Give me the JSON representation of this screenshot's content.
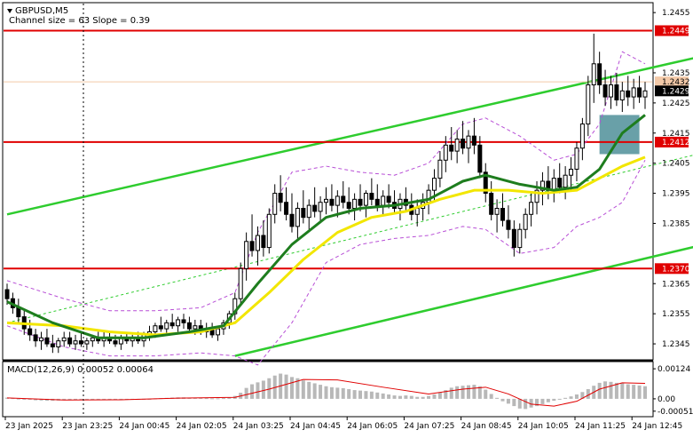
{
  "header": {
    "symbol": "GBPUSD,M5",
    "channel_info": "Channel size = 63 Slope = 0.39"
  },
  "chart_data": [
    {
      "type": "candlestick",
      "title": "GBPUSD,M5",
      "ylim": [
        1.234,
        1.2458
      ],
      "y_ticks": [
        "1.2455",
        "1.2435",
        "1.2425",
        "1.2415",
        "1.2405",
        "1.2395",
        "1.2385",
        "1.2365",
        "1.2355",
        "1.2345"
      ],
      "x_ticks": [
        "23 Jan 2025",
        "23 Jan 23:25",
        "24 Jan 00:45",
        "24 Jan 02:05",
        "24 Jan 03:25",
        "24 Jan 04:45",
        "24 Jan 06:05",
        "24 Jan 07:25",
        "24 Jan 08:45",
        "24 Jan 10:05",
        "24 Jan 11:25",
        "24 Jan 12:45"
      ],
      "price_levels": [
        {
          "label": "1.2449",
          "value": 1.2449,
          "color": "#e00000"
        },
        {
          "label": "1.2412",
          "value": 1.2412,
          "color": "#e00000"
        },
        {
          "label": "1.2370",
          "value": 1.237,
          "color": "#e00000"
        }
      ],
      "current_price": {
        "label": "1.2429",
        "value": 1.2429
      },
      "bid_level": {
        "label": "1.2432",
        "value": 1.2432
      },
      "channel": {
        "color": "#2ecc2e",
        "upper": [
          [
            0,
            1.2388
          ],
          [
            158,
            1.2456
          ]
        ],
        "lower": [
          [
            40,
            1.2341
          ],
          [
            158,
            1.2394
          ]
        ],
        "middle": [
          [
            0,
            1.2352
          ],
          [
            158,
            1.2425
          ]
        ]
      },
      "highlight_zone": {
        "x_from": 104,
        "x_to": 111,
        "y_from": 1.2408,
        "y_to": 1.2421,
        "color": "#4f8f99"
      },
      "ma_fast_color": "#1e7d1e",
      "ma_slow_color": "#f2e600",
      "bands_color": "#b84fd6",
      "candles": [
        [
          1.2363,
          1.2365,
          1.2358,
          1.236
        ],
        [
          1.236,
          1.2362,
          1.2355,
          1.2357
        ],
        [
          1.2357,
          1.236,
          1.2352,
          1.2354
        ],
        [
          1.2354,
          1.2356,
          1.2348,
          1.235
        ],
        [
          1.235,
          1.2353,
          1.2346,
          1.2348
        ],
        [
          1.2348,
          1.235,
          1.2344,
          1.2346
        ],
        [
          1.2346,
          1.2349,
          1.2343,
          1.2347
        ],
        [
          1.2347,
          1.235,
          1.2344,
          1.2345
        ],
        [
          1.2345,
          1.2348,
          1.2342,
          1.2344
        ],
        [
          1.2344,
          1.2347,
          1.2342,
          1.2346
        ],
        [
          1.2346,
          1.2349,
          1.2344,
          1.2347
        ],
        [
          1.2347,
          1.2349,
          1.2344,
          1.2345
        ],
        [
          1.2345,
          1.2348,
          1.2343,
          1.2346
        ],
        [
          1.2346,
          1.2349,
          1.2344,
          1.2345
        ],
        [
          1.2345,
          1.2347,
          1.2343,
          1.2346
        ],
        [
          1.2346,
          1.2348,
          1.2344,
          1.2347
        ],
        [
          1.2347,
          1.2349,
          1.2345,
          1.2346
        ],
        [
          1.2346,
          1.2349,
          1.2344,
          1.2347
        ],
        [
          1.2347,
          1.2349,
          1.2345,
          1.2346
        ],
        [
          1.2346,
          1.2348,
          1.2344,
          1.2345
        ],
        [
          1.2345,
          1.2348,
          1.2343,
          1.2347
        ],
        [
          1.2347,
          1.2349,
          1.2345,
          1.2346
        ],
        [
          1.2346,
          1.2348,
          1.2344,
          1.2347
        ],
        [
          1.2347,
          1.2349,
          1.2345,
          1.2346
        ],
        [
          1.2346,
          1.2349,
          1.2344,
          1.2348
        ],
        [
          1.2348,
          1.2351,
          1.2346,
          1.2349
        ],
        [
          1.2349,
          1.2352,
          1.2347,
          1.2351
        ],
        [
          1.2351,
          1.2354,
          1.2349,
          1.235
        ],
        [
          1.235,
          1.2353,
          1.2348,
          1.2352
        ],
        [
          1.2352,
          1.2355,
          1.235,
          1.2351
        ],
        [
          1.2351,
          1.2354,
          1.2349,
          1.2353
        ],
        [
          1.2353,
          1.2355,
          1.235,
          1.2352
        ],
        [
          1.2352,
          1.2354,
          1.2349,
          1.235
        ],
        [
          1.235,
          1.2353,
          1.2348,
          1.2351
        ],
        [
          1.2351,
          1.2353,
          1.2348,
          1.2349
        ],
        [
          1.2349,
          1.2352,
          1.2347,
          1.235
        ],
        [
          1.235,
          1.2352,
          1.2347,
          1.2348
        ],
        [
          1.2348,
          1.2351,
          1.2346,
          1.235
        ],
        [
          1.235,
          1.2353,
          1.2348,
          1.2352
        ],
        [
          1.2352,
          1.2356,
          1.235,
          1.2355
        ],
        [
          1.2355,
          1.2362,
          1.2353,
          1.236
        ],
        [
          1.236,
          1.2372,
          1.2358,
          1.237
        ],
        [
          1.237,
          1.2382,
          1.2366,
          1.2379
        ],
        [
          1.2379,
          1.2388,
          1.2374,
          1.2376
        ],
        [
          1.2376,
          1.2384,
          1.2371,
          1.2381
        ],
        [
          1.2381,
          1.2386,
          1.2374,
          1.2377
        ],
        [
          1.2377,
          1.239,
          1.2375,
          1.2388
        ],
        [
          1.2388,
          1.2398,
          1.2385,
          1.2395
        ],
        [
          1.2395,
          1.2401,
          1.2389,
          1.2392
        ],
        [
          1.2392,
          1.2397,
          1.2386,
          1.2388
        ],
        [
          1.2388,
          1.2395,
          1.2382,
          1.2384
        ],
        [
          1.2384,
          1.2392,
          1.238,
          1.239
        ],
        [
          1.239,
          1.2396,
          1.2385,
          1.2387
        ],
        [
          1.2387,
          1.2393,
          1.2383,
          1.2391
        ],
        [
          1.2391,
          1.2397,
          1.2387,
          1.2389
        ],
        [
          1.2389,
          1.2394,
          1.2385,
          1.2392
        ],
        [
          1.2392,
          1.2397,
          1.2388,
          1.2393
        ],
        [
          1.2393,
          1.2398,
          1.2389,
          1.2391
        ],
        [
          1.2391,
          1.2396,
          1.2387,
          1.2394
        ],
        [
          1.2394,
          1.2399,
          1.239,
          1.2392
        ],
        [
          1.2392,
          1.2397,
          1.2388,
          1.239
        ],
        [
          1.239,
          1.2395,
          1.2386,
          1.2393
        ],
        [
          1.2393,
          1.2398,
          1.2389,
          1.2391
        ],
        [
          1.2391,
          1.2396,
          1.2387,
          1.2395
        ],
        [
          1.2395,
          1.24,
          1.2391,
          1.2393
        ],
        [
          1.2393,
          1.2398,
          1.2389,
          1.2391
        ],
        [
          1.2391,
          1.2396,
          1.2388,
          1.2394
        ],
        [
          1.2394,
          1.2398,
          1.239,
          1.2392
        ],
        [
          1.2392,
          1.2396,
          1.2388,
          1.239
        ],
        [
          1.239,
          1.2395,
          1.2386,
          1.2393
        ],
        [
          1.2393,
          1.2397,
          1.2389,
          1.2391
        ],
        [
          1.2391,
          1.2395,
          1.2386,
          1.2388
        ],
        [
          1.2388,
          1.2393,
          1.2384,
          1.239
        ],
        [
          1.239,
          1.2395,
          1.2386,
          1.2392
        ],
        [
          1.2392,
          1.2398,
          1.2388,
          1.2396
        ],
        [
          1.2396,
          1.2403,
          1.2392,
          1.24
        ],
        [
          1.24,
          1.2409,
          1.2397,
          1.2406
        ],
        [
          1.2406,
          1.2414,
          1.2402,
          1.2411
        ],
        [
          1.2411,
          1.2417,
          1.2406,
          1.2409
        ],
        [
          1.2409,
          1.2416,
          1.2405,
          1.2413
        ],
        [
          1.2413,
          1.2419,
          1.2408,
          1.241
        ],
        [
          1.241,
          1.2416,
          1.2405,
          1.2414
        ],
        [
          1.2414,
          1.242,
          1.2408,
          1.2411
        ],
        [
          1.2411,
          1.2414,
          1.24,
          1.2402
        ],
        [
          1.2402,
          1.2405,
          1.2392,
          1.2395
        ],
        [
          1.2395,
          1.2399,
          1.2386,
          1.2388
        ],
        [
          1.2388,
          1.2393,
          1.2382,
          1.239
        ],
        [
          1.239,
          1.2395,
          1.2384,
          1.2386
        ],
        [
          1.2386,
          1.2391,
          1.238,
          1.2383
        ],
        [
          1.2383,
          1.2386,
          1.2374,
          1.2377
        ],
        [
          1.2377,
          1.2385,
          1.2375,
          1.2383
        ],
        [
          1.2383,
          1.239,
          1.238,
          1.2388
        ],
        [
          1.2388,
          1.2395,
          1.2384,
          1.2392
        ],
        [
          1.2392,
          1.2399,
          1.2388,
          1.2396
        ],
        [
          1.2396,
          1.2402,
          1.2391,
          1.2399
        ],
        [
          1.2399,
          1.2404,
          1.2393,
          1.2396
        ],
        [
          1.2396,
          1.2403,
          1.2392,
          1.24
        ],
        [
          1.24,
          1.2405,
          1.2395,
          1.2397
        ],
        [
          1.2397,
          1.2404,
          1.2393,
          1.2401
        ],
        [
          1.2401,
          1.2407,
          1.2396,
          1.2403
        ],
        [
          1.2403,
          1.2412,
          1.2399,
          1.241
        ],
        [
          1.241,
          1.242,
          1.2406,
          1.2418
        ],
        [
          1.2418,
          1.2434,
          1.2414,
          1.2431
        ],
        [
          1.2431,
          1.2448,
          1.2425,
          1.2438
        ],
        [
          1.2438,
          1.2442,
          1.2428,
          1.2431
        ],
        [
          1.2431,
          1.2436,
          1.2424,
          1.2427
        ],
        [
          1.2427,
          1.2434,
          1.2423,
          1.2431
        ],
        [
          1.2431,
          1.2435,
          1.2424,
          1.2426
        ],
        [
          1.2426,
          1.2432,
          1.2422,
          1.2429
        ],
        [
          1.2429,
          1.2434,
          1.2424,
          1.2427
        ],
        [
          1.2427,
          1.2433,
          1.2423,
          1.243
        ],
        [
          1.243,
          1.2434,
          1.2425,
          1.2427
        ],
        [
          1.2427,
          1.2432,
          1.2423,
          1.2429
        ]
      ],
      "ma_fast": [
        [
          0,
          1.2359
        ],
        [
          8,
          1.2352
        ],
        [
          16,
          1.2347
        ],
        [
          24,
          1.2347
        ],
        [
          32,
          1.2349
        ],
        [
          38,
          1.2351
        ],
        [
          44,
          1.2365
        ],
        [
          50,
          1.2378
        ],
        [
          56,
          1.2387
        ],
        [
          62,
          1.239
        ],
        [
          68,
          1.2391
        ],
        [
          74,
          1.2393
        ],
        [
          80,
          1.2399
        ],
        [
          84,
          1.2401
        ],
        [
          90,
          1.2398
        ],
        [
          96,
          1.2396
        ],
        [
          100,
          1.2397
        ],
        [
          104,
          1.2403
        ],
        [
          108,
          1.2415
        ],
        [
          112,
          1.2421
        ]
      ],
      "ma_slow": [
        [
          0,
          1.2352
        ],
        [
          10,
          1.2351
        ],
        [
          18,
          1.2349
        ],
        [
          26,
          1.2348
        ],
        [
          34,
          1.2349
        ],
        [
          40,
          1.2352
        ],
        [
          46,
          1.2362
        ],
        [
          52,
          1.2373
        ],
        [
          58,
          1.2382
        ],
        [
          64,
          1.2387
        ],
        [
          70,
          1.2389
        ],
        [
          76,
          1.2393
        ],
        [
          82,
          1.2396
        ],
        [
          88,
          1.2396
        ],
        [
          94,
          1.2395
        ],
        [
          100,
          1.2396
        ],
        [
          104,
          1.24
        ],
        [
          108,
          1.2404
        ],
        [
          112,
          1.2407
        ]
      ],
      "bands_upper": [
        [
          0,
          1.2366
        ],
        [
          10,
          1.236
        ],
        [
          18,
          1.2356
        ],
        [
          26,
          1.2356
        ],
        [
          34,
          1.2357
        ],
        [
          40,
          1.2362
        ],
        [
          44,
          1.2382
        ],
        [
          50,
          1.2402
        ],
        [
          56,
          1.2404
        ],
        [
          62,
          1.2402
        ],
        [
          68,
          1.2401
        ],
        [
          74,
          1.2405
        ],
        [
          80,
          1.2418
        ],
        [
          84,
          1.242
        ],
        [
          90,
          1.2414
        ],
        [
          96,
          1.2406
        ],
        [
          100,
          1.2408
        ],
        [
          104,
          1.2418
        ],
        [
          108,
          1.2442
        ],
        [
          112,
          1.2438
        ]
      ],
      "bands_lower": [
        [
          0,
          1.2351
        ],
        [
          10,
          1.2344
        ],
        [
          18,
          1.2341
        ],
        [
          26,
          1.2341
        ],
        [
          34,
          1.2342
        ],
        [
          40,
          1.2341
        ],
        [
          44,
          1.2338
        ],
        [
          50,
          1.2352
        ],
        [
          56,
          1.2372
        ],
        [
          62,
          1.2378
        ],
        [
          68,
          1.238
        ],
        [
          74,
          1.2381
        ],
        [
          80,
          1.2384
        ],
        [
          84,
          1.2383
        ],
        [
          90,
          1.2375
        ],
        [
          96,
          1.2377
        ],
        [
          100,
          1.2384
        ],
        [
          104,
          1.2387
        ],
        [
          108,
          1.2392
        ],
        [
          112,
          1.2406
        ]
      ]
    },
    {
      "type": "bar",
      "title": "MACD(12,26,9) 0.00052 0.00064",
      "ylim": [
        -0.0007,
        0.0015
      ],
      "y_ticks": [
        "0.00124",
        "0.00",
        "-0.00051"
      ],
      "signal_color": "#e00000",
      "histogram_color": "#b8b8b8",
      "histogram": [
        5e-05,
        3e-05,
        1e-05,
        -2e-05,
        -4e-05,
        -6e-05,
        -7e-05,
        -8e-05,
        -8e-05,
        -7e-05,
        -6e-05,
        -6e-05,
        -5e-05,
        -5e-05,
        -4e-05,
        -4e-05,
        -3e-05,
        -3e-05,
        -3e-05,
        -3e-05,
        -3e-05,
        -2e-05,
        -2e-05,
        -2e-05,
        -1e-05,
        0.0,
        2e-05,
        3e-05,
        4e-05,
        5e-05,
        6e-05,
        6e-05,
        5e-05,
        4e-05,
        4e-05,
        3e-05,
        2e-05,
        2e-05,
        3e-05,
        5e-05,
        0.00012,
        0.00025,
        0.00045,
        0.0006,
        0.00068,
        0.00075,
        0.00085,
        0.00096,
        0.00104,
        0.001,
        0.0009,
        0.00085,
        0.00076,
        0.0007,
        0.00064,
        0.00058,
        0.00052,
        0.00048,
        0.00046,
        0.00044,
        0.0004,
        0.00036,
        0.00034,
        0.00032,
        0.0003,
        0.00026,
        0.00022,
        0.00018,
        0.00014,
        0.00012,
        0.00014,
        0.00012,
        8e-05,
        8e-05,
        0.00012,
        0.00018,
        0.00026,
        0.00036,
        0.00046,
        0.00052,
        0.00054,
        0.00056,
        0.00058,
        0.00052,
        0.00038,
        0.0002,
        4e-05,
        -0.0001,
        -0.0002,
        -0.0003,
        -0.0004,
        -0.00042,
        -0.00036,
        -0.0003,
        -0.00022,
        -0.00014,
        -8e-05,
        -2e-05,
        4e-05,
        0.0001,
        0.00018,
        0.00028,
        0.0004,
        0.00054,
        0.00066,
        0.00072,
        0.0007,
        0.00066,
        0.00064,
        0.0006,
        0.00058,
        0.00055,
        0.00052
      ],
      "signal": [
        [
          0,
          4e-05
        ],
        [
          10,
          -5e-05
        ],
        [
          20,
          -4e-05
        ],
        [
          30,
          3e-05
        ],
        [
          40,
          6e-05
        ],
        [
          46,
          0.0004
        ],
        [
          52,
          0.0008
        ],
        [
          58,
          0.00078
        ],
        [
          66,
          0.00048
        ],
        [
          74,
          0.0002
        ],
        [
          80,
          0.0004
        ],
        [
          84,
          0.00048
        ],
        [
          88,
          0.0002
        ],
        [
          92,
          -0.00022
        ],
        [
          96,
          -0.0003
        ],
        [
          100,
          -0.0001
        ],
        [
          104,
          0.0004
        ],
        [
          108,
          0.00066
        ],
        [
          112,
          0.00064
        ]
      ]
    }
  ]
}
